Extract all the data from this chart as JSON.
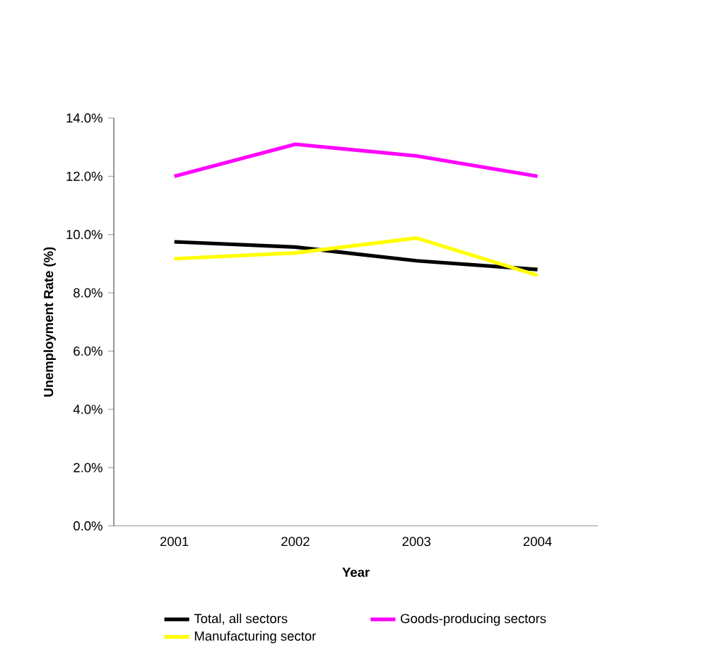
{
  "chart_data": {
    "type": "line",
    "xlabel": "Year",
    "ylabel": "Unemployment Rate (%)",
    "categories": [
      "2001",
      "2002",
      "2003",
      "2004"
    ],
    "series": [
      {
        "name": "Total, all sectors",
        "color": "#000000",
        "values": [
          9.75,
          9.57,
          9.1,
          8.8
        ]
      },
      {
        "name": "Goods-producing sectors",
        "color": "#ff00ff",
        "values": [
          12.0,
          13.1,
          12.7,
          12.0
        ]
      },
      {
        "name": "Manufacturing sector",
        "color": "#ffff00",
        "values": [
          9.17,
          9.37,
          9.88,
          8.6
        ]
      }
    ],
    "ylim": [
      0,
      14
    ],
    "yticks": [
      {
        "value": 0,
        "label": "0.0%"
      },
      {
        "value": 2,
        "label": "2.0%"
      },
      {
        "value": 4,
        "label": "4.0%"
      },
      {
        "value": 6,
        "label": "6.0%"
      },
      {
        "value": 8,
        "label": "8.0%"
      },
      {
        "value": 10,
        "label": "10.0%"
      },
      {
        "value": 12,
        "label": "12.0%"
      },
      {
        "value": 14,
        "label": "14.0%"
      }
    ],
    "grid": false,
    "legend": "bottom",
    "marker": "none",
    "line_style": "solid"
  }
}
